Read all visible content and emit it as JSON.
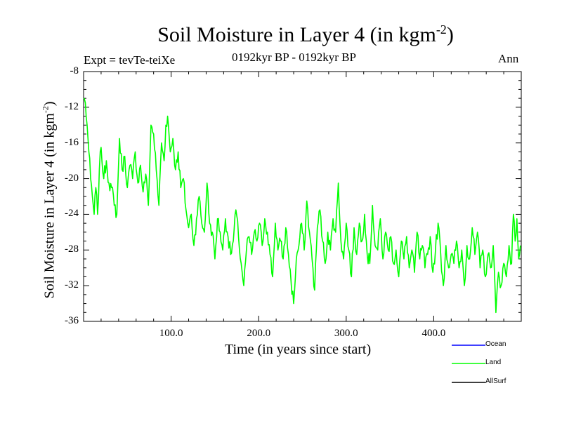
{
  "chart_data": {
    "type": "line",
    "title": "Soil Moisture in Layer 4 (in kgm",
    "title_superscript": "-2",
    "title_close": ")",
    "subtitle_left": "Expt = tevTe-teiXe",
    "subtitle_center": "0192kyr BP - 0192kyr BP",
    "subtitle_right": "Ann",
    "xlabel": "Time (in years since start)",
    "ylabel": "Soil Moisture in Layer 4 (in kgm",
    "ylabel_superscript": "-2",
    "ylabel_close": ")",
    "xlim": [
      0,
      500
    ],
    "ylim": [
      -36,
      -8
    ],
    "x_ticks": [
      100,
      200,
      300,
      400
    ],
    "x_tick_labels": [
      "100.0",
      "200.0",
      "300.0",
      "400.0"
    ],
    "y_ticks": [
      -36,
      -32,
      -28,
      -24,
      -20,
      -16,
      -12,
      -8
    ],
    "y_tick_labels": [
      "-36",
      "-32",
      "-28",
      "-24",
      "-20",
      "-16",
      "-12",
      "-8"
    ],
    "legend": [
      {
        "name": "Ocean",
        "color": "#0000ff"
      },
      {
        "name": "Land",
        "color": "#00ff00"
      },
      {
        "name": "AllSurf",
        "color": "#000000"
      }
    ],
    "series": [
      {
        "name": "Land",
        "color": "#00ff00",
        "anchors": [
          [
            0,
            -11
          ],
          [
            2,
            -11.5
          ],
          [
            4,
            -14
          ],
          [
            6,
            -17
          ],
          [
            8,
            -20
          ],
          [
            10,
            -22
          ],
          [
            12,
            -24
          ],
          [
            14,
            -21
          ],
          [
            16,
            -24
          ],
          [
            18,
            -19
          ],
          [
            20,
            -16.5
          ],
          [
            23,
            -20
          ],
          [
            26,
            -18
          ],
          [
            29,
            -20.5
          ],
          [
            32,
            -21
          ],
          [
            35,
            -23
          ],
          [
            38,
            -24
          ],
          [
            41,
            -15.5
          ],
          [
            44,
            -19
          ],
          [
            47,
            -17.5
          ],
          [
            50,
            -21
          ],
          [
            53,
            -18.5
          ],
          [
            56,
            -20
          ],
          [
            59,
            -17
          ],
          [
            62,
            -20.5
          ],
          [
            65,
            -18.5
          ],
          [
            68,
            -21.5
          ],
          [
            71,
            -19.5
          ],
          [
            74,
            -23
          ],
          [
            77,
            -14
          ],
          [
            80,
            -15
          ],
          [
            83,
            -19
          ],
          [
            86,
            -23
          ],
          [
            89,
            -16
          ],
          [
            92,
            -18
          ],
          [
            94,
            -14
          ],
          [
            96,
            -13
          ],
          [
            99,
            -17
          ],
          [
            102,
            -15.5
          ],
          [
            105,
            -19
          ],
          [
            108,
            -17
          ],
          [
            111,
            -21
          ],
          [
            114,
            -20
          ],
          [
            117,
            -23.5
          ],
          [
            120,
            -25.5
          ],
          [
            123,
            -24
          ],
          [
            126,
            -27.5
          ],
          [
            129,
            -24.5
          ],
          [
            132,
            -22
          ],
          [
            135,
            -25
          ],
          [
            138,
            -26
          ],
          [
            141,
            -20.5
          ],
          [
            144,
            -25
          ],
          [
            147,
            -26
          ],
          [
            150,
            -29
          ],
          [
            153,
            -24.5
          ],
          [
            156,
            -26
          ],
          [
            159,
            -28
          ],
          [
            162,
            -24.5
          ],
          [
            165,
            -26.5
          ],
          [
            168,
            -28.5
          ],
          [
            171,
            -27
          ],
          [
            174,
            -23.5
          ],
          [
            177,
            -26.5
          ],
          [
            180,
            -29.5
          ],
          [
            183,
            -32
          ],
          [
            186,
            -28
          ],
          [
            189,
            -26.5
          ],
          [
            192,
            -28.5
          ],
          [
            195,
            -26
          ],
          [
            198,
            -27
          ],
          [
            201,
            -25
          ],
          [
            204,
            -27.5
          ],
          [
            207,
            -24.5
          ],
          [
            210,
            -26
          ],
          [
            213,
            -28.5
          ],
          [
            216,
            -31
          ],
          [
            219,
            -25
          ],
          [
            222,
            -28
          ],
          [
            225,
            -27
          ],
          [
            228,
            -29
          ],
          [
            231,
            -25.5
          ],
          [
            234,
            -28.5
          ],
          [
            237,
            -31.5
          ],
          [
            240,
            -34
          ],
          [
            243,
            -29
          ],
          [
            246,
            -27.5
          ],
          [
            249,
            -25
          ],
          [
            252,
            -28
          ],
          [
            255,
            -22.5
          ],
          [
            258,
            -26
          ],
          [
            261,
            -29
          ],
          [
            264,
            -32.5
          ],
          [
            267,
            -25.5
          ],
          [
            270,
            -23.5
          ],
          [
            273,
            -27
          ],
          [
            276,
            -29.5
          ],
          [
            279,
            -26
          ],
          [
            282,
            -28
          ],
          [
            285,
            -24.5
          ],
          [
            288,
            -26
          ],
          [
            291,
            -20.5
          ],
          [
            294,
            -27
          ],
          [
            297,
            -29
          ],
          [
            300,
            -25
          ],
          [
            303,
            -28
          ],
          [
            306,
            -31
          ],
          [
            309,
            -25.5
          ],
          [
            312,
            -28.5
          ],
          [
            315,
            -25
          ],
          [
            318,
            -27
          ],
          [
            321,
            -24
          ],
          [
            324,
            -28.5
          ],
          [
            327,
            -29.5
          ],
          [
            330,
            -23
          ],
          [
            333,
            -27.5
          ],
          [
            336,
            -28
          ],
          [
            339,
            -24.5
          ],
          [
            342,
            -29
          ],
          [
            345,
            -26
          ],
          [
            348,
            -28
          ],
          [
            351,
            -26.5
          ],
          [
            354,
            -29.5
          ],
          [
            357,
            -28
          ],
          [
            360,
            -31
          ],
          [
            363,
            -27
          ],
          [
            366,
            -29
          ],
          [
            369,
            -26.5
          ],
          [
            372,
            -30
          ],
          [
            375,
            -28
          ],
          [
            378,
            -30.5
          ],
          [
            381,
            -26
          ],
          [
            384,
            -29
          ],
          [
            387,
            -27.5
          ],
          [
            390,
            -30
          ],
          [
            393,
            -28.5
          ],
          [
            396,
            -26.5
          ],
          [
            399,
            -30.5
          ],
          [
            402,
            -28
          ],
          [
            405,
            -25
          ],
          [
            408,
            -28.5
          ],
          [
            411,
            -32
          ],
          [
            414,
            -27.5
          ],
          [
            417,
            -30
          ],
          [
            420,
            -28.5
          ],
          [
            423,
            -29.5
          ],
          [
            426,
            -27
          ],
          [
            429,
            -30
          ],
          [
            432,
            -28
          ],
          [
            435,
            -32
          ],
          [
            438,
            -27.5
          ],
          [
            441,
            -29
          ],
          [
            444,
            -25.5
          ],
          [
            447,
            -28.5
          ],
          [
            450,
            -26
          ],
          [
            453,
            -30
          ],
          [
            456,
            -28
          ],
          [
            459,
            -31
          ],
          [
            462,
            -28.5
          ],
          [
            465,
            -30
          ],
          [
            468,
            -27.5
          ],
          [
            471,
            -35
          ],
          [
            474,
            -30.5
          ],
          [
            477,
            -32
          ],
          [
            480,
            -29.5
          ],
          [
            483,
            -31
          ],
          [
            486,
            -27.5
          ],
          [
            489,
            -29.5
          ],
          [
            491,
            -24
          ],
          [
            493,
            -27
          ],
          [
            495,
            -24.5
          ],
          [
            497,
            -29
          ],
          [
            499,
            -27.5
          ]
        ]
      }
    ]
  }
}
